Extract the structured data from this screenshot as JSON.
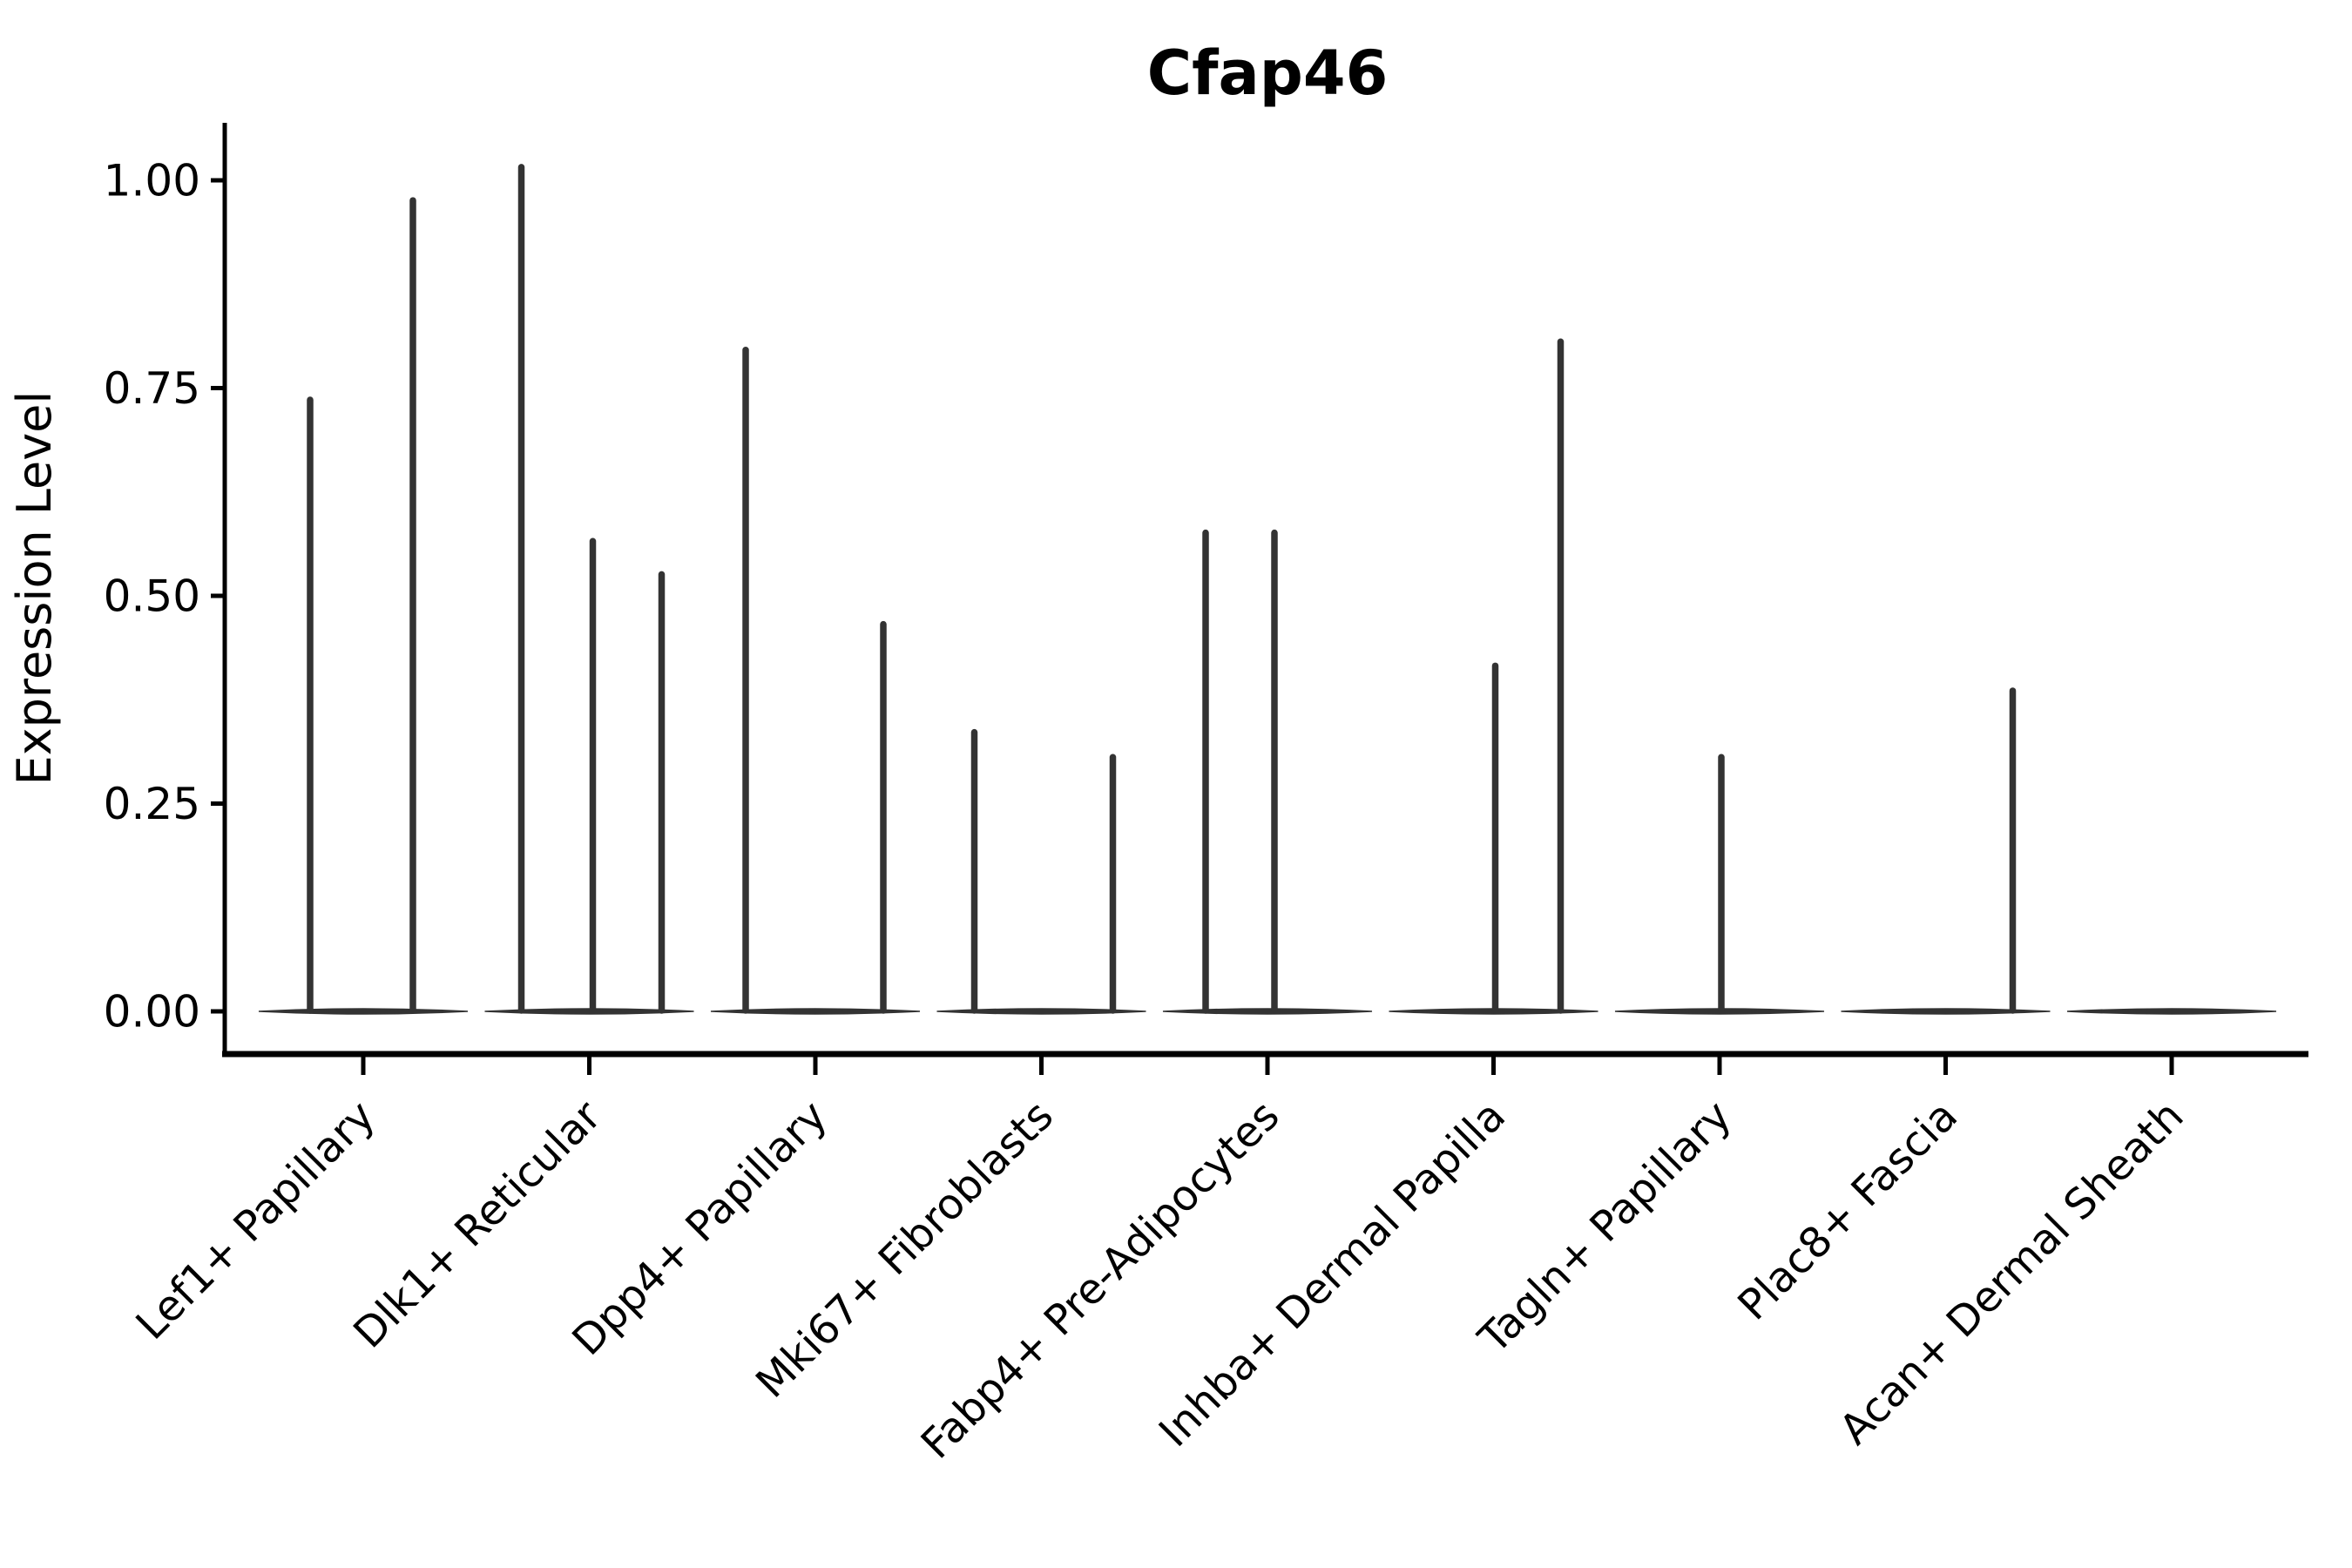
{
  "figure": {
    "background": "#ffffff"
  },
  "chart_data": {
    "type": "violin",
    "title": "Cfap46",
    "ylabel": "Expression Level",
    "xlabel": "",
    "ylim": [
      0,
      1.07
    ],
    "yticks": [
      "0.00",
      "0.25",
      "0.50",
      "0.75",
      "1.00"
    ],
    "ytick_values": [
      0,
      0.25,
      0.5,
      0.75,
      1.0
    ],
    "grid": false,
    "legend": "none",
    "violin_color": "#333333",
    "axis_color": "#000000",
    "background": "#ffffff",
    "x_label_rotation_deg": 45,
    "categories": [
      {
        "label": "Lef1+ Papillary",
        "spikes": [
          {
            "dx": -61,
            "value": 0.74
          },
          {
            "dx": 57,
            "value": 0.98
          }
        ]
      },
      {
        "label": "Dlk1+ Reticular",
        "spikes": [
          {
            "dx": -78,
            "value": 1.02
          },
          {
            "dx": 4,
            "value": 0.57
          },
          {
            "dx": 83,
            "value": 0.53
          }
        ]
      },
      {
        "label": "Dpp4+ Papillary",
        "spikes": [
          {
            "dx": -80,
            "value": 0.8
          },
          {
            "dx": 78,
            "value": 0.47
          }
        ]
      },
      {
        "label": "Mki67+ Fibroblasts",
        "spikes": [
          {
            "dx": -77,
            "value": 0.34
          },
          {
            "dx": 82,
            "value": 0.31
          }
        ]
      },
      {
        "label": "Fabp4+ Pre-Adipocytes",
        "spikes": [
          {
            "dx": -71,
            "value": 0.58
          },
          {
            "dx": 8,
            "value": 0.58
          }
        ]
      },
      {
        "label": "Inhba+ Dermal Papilla",
        "spikes": [
          {
            "dx": 2,
            "value": 0.42
          },
          {
            "dx": 77,
            "value": 0.81
          }
        ]
      },
      {
        "label": "Tagln+ Papillary",
        "spikes": [
          {
            "dx": 2,
            "value": 0.31
          }
        ]
      },
      {
        "label": "Plac8+ Fascia",
        "spikes": [
          {
            "dx": 77,
            "value": 0.39
          }
        ]
      },
      {
        "label": "Acan+ Dermal Sheath",
        "spikes": []
      }
    ]
  }
}
